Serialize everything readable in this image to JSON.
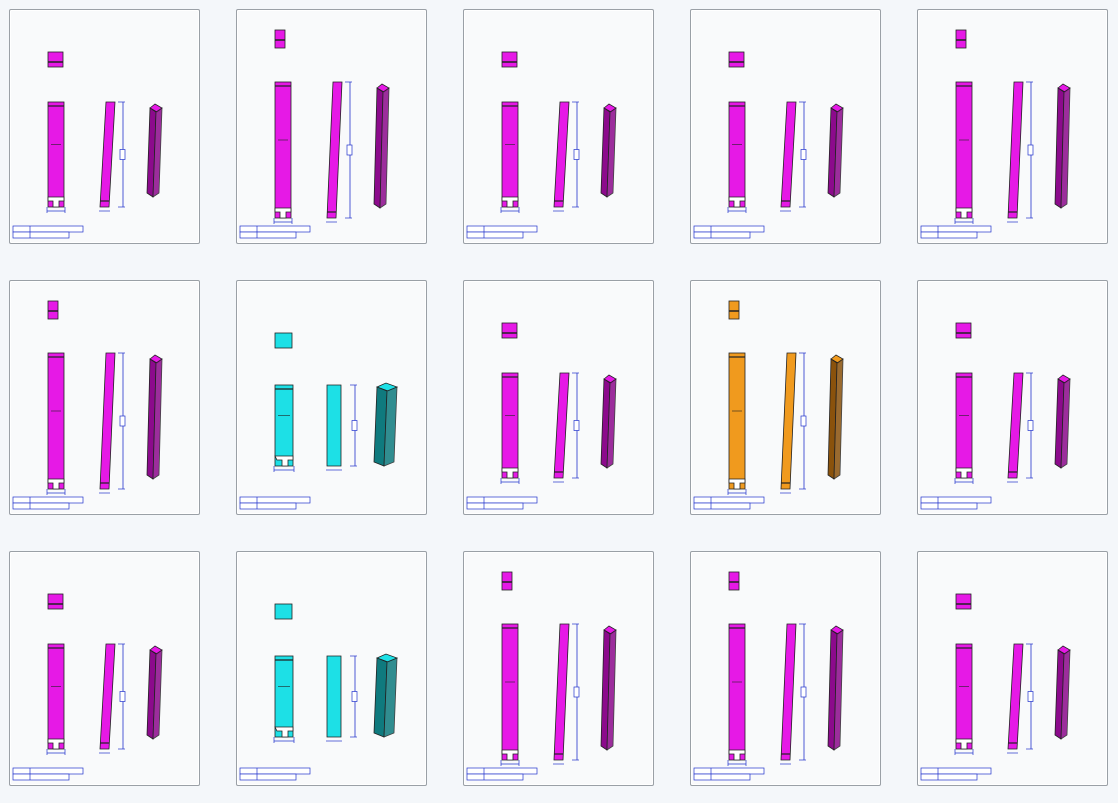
{
  "gallery": {
    "thumbnails": [
      {
        "color": "#e619e6",
        "dark": "#8c0a8c",
        "shape": "long"
      },
      {
        "color": "#e619e6",
        "dark": "#8c0a8c",
        "shape": "tall"
      },
      {
        "color": "#e619e6",
        "dark": "#8c0a8c",
        "shape": "long"
      },
      {
        "color": "#e619e6",
        "dark": "#8c0a8c",
        "shape": "long"
      },
      {
        "color": "#e619e6",
        "dark": "#8c0a8c",
        "shape": "tall"
      },
      {
        "color": "#e619e6",
        "dark": "#8c0a8c",
        "shape": "tall"
      },
      {
        "color": "#1de0e6",
        "dark": "#0f7a7e",
        "shape": "short"
      },
      {
        "color": "#e619e6",
        "dark": "#8c0a8c",
        "shape": "long"
      },
      {
        "color": "#f09a1e",
        "dark": "#8a520c",
        "shape": "tall"
      },
      {
        "color": "#e619e6",
        "dark": "#8c0a8c",
        "shape": "long"
      },
      {
        "color": "#e619e6",
        "dark": "#8c0a8c",
        "shape": "long"
      },
      {
        "color": "#1de0e6",
        "dark": "#0f7a7e",
        "shape": "short"
      },
      {
        "color": "#e619e6",
        "dark": "#8c0a8c",
        "shape": "tall"
      },
      {
        "color": "#e619e6",
        "dark": "#8c0a8c",
        "shape": "tall"
      },
      {
        "color": "#e619e6",
        "dark": "#8c0a8c",
        "shape": "long"
      }
    ],
    "dimension_color": "#2233cc",
    "outline_color": "#222222"
  }
}
